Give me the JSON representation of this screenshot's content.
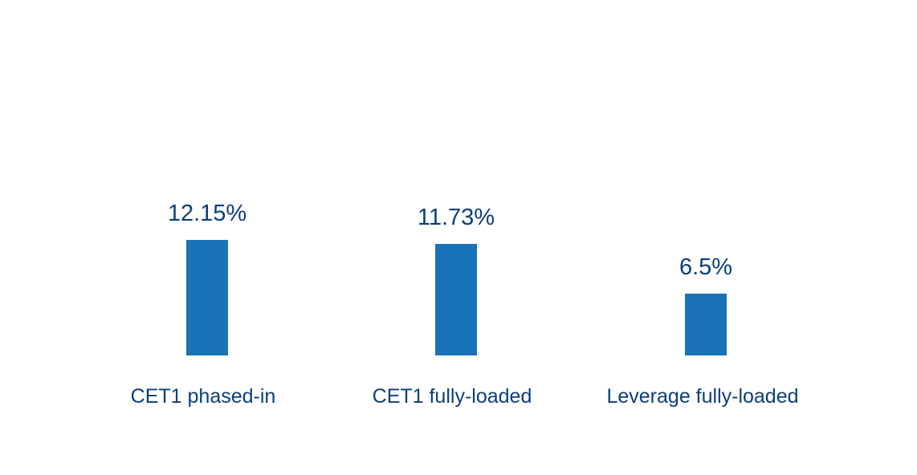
{
  "chart_data": {
    "type": "bar",
    "categories": [
      "CET1 phased-in",
      "CET1 fully-loaded",
      "Leverage fully-loaded"
    ],
    "values": [
      12.15,
      11.73,
      6.5
    ],
    "value_labels": [
      "12.15%",
      "11.73%",
      "6.5%"
    ],
    "title": "",
    "xlabel": "",
    "ylabel": "",
    "ylim": [
      0,
      12.15
    ],
    "grid": false,
    "legend": "none",
    "colors": {
      "bar": "#1973b8",
      "text": "#0b3f7a"
    }
  }
}
